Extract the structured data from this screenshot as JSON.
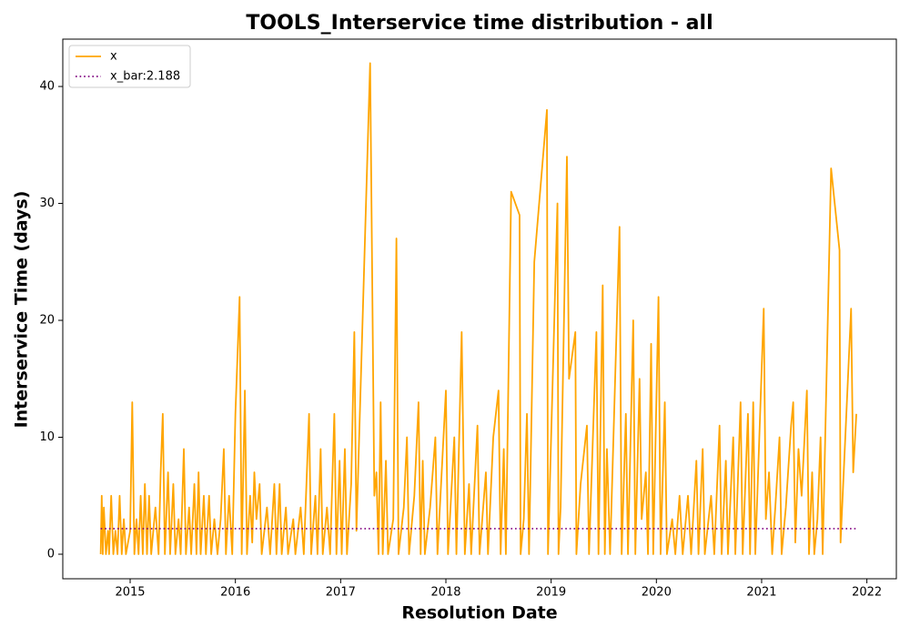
{
  "chart_data": {
    "type": "line",
    "title": "TOOLS_Interservice time distribution - all",
    "xlabel": "Resolution Date",
    "ylabel": "Interservice Time (days)",
    "xlim": [
      2014.36,
      2022.28
    ],
    "xticks": [
      2015,
      2016,
      2017,
      2018,
      2019,
      2020,
      2021,
      2022
    ],
    "ylim": [
      -2.1,
      44.05
    ],
    "yticks": [
      0,
      10,
      20,
      30,
      40
    ],
    "legend": "upper left",
    "series": [
      {
        "name": "x",
        "color": "#ffa500",
        "style": "solid",
        "x": [
          2014.72,
          2014.73,
          2014.74,
          2014.75,
          2014.77,
          2014.79,
          2014.8,
          2014.82,
          2014.84,
          2014.86,
          2014.88,
          2014.9,
          2014.92,
          2014.94,
          2014.96,
          2015.0,
          2015.02,
          2015.04,
          2015.06,
          2015.08,
          2015.1,
          2015.12,
          2015.14,
          2015.16,
          2015.18,
          2015.2,
          2015.24,
          2015.27,
          2015.29,
          2015.31,
          2015.33,
          2015.36,
          2015.38,
          2015.41,
          2015.43,
          2015.46,
          2015.48,
          2015.51,
          2015.53,
          2015.56,
          2015.58,
          2015.61,
          2015.63,
          2015.65,
          2015.67,
          2015.7,
          2015.72,
          2015.75,
          2015.77,
          2015.8,
          2015.83,
          2015.86,
          2015.89,
          2015.91,
          2015.94,
          2015.97,
          2016.0,
          2016.04,
          2016.06,
          2016.09,
          2016.11,
          2016.14,
          2016.16,
          2016.18,
          2016.2,
          2016.23,
          2016.25,
          2016.3,
          2016.33,
          2016.37,
          2016.39,
          2016.42,
          2016.44,
          2016.48,
          2016.5,
          2016.55,
          2016.57,
          2016.62,
          2016.65,
          2016.7,
          2016.72,
          2016.76,
          2016.78,
          2016.81,
          2016.83,
          2016.87,
          2016.9,
          2016.94,
          2016.96,
          2016.99,
          2017.01,
          2017.04,
          2017.06,
          2017.1,
          2017.13,
          2017.15,
          2017.28,
          2017.32,
          2017.34,
          2017.36,
          2017.38,
          2017.4,
          2017.43,
          2017.45,
          2017.5,
          2017.53,
          2017.55,
          2017.6,
          2017.63,
          2017.65,
          2017.7,
          2017.74,
          2017.76,
          2017.78,
          2017.8,
          2017.85,
          2017.9,
          2017.92,
          2018.0,
          2018.02,
          2018.08,
          2018.1,
          2018.15,
          2018.18,
          2018.22,
          2018.24,
          2018.3,
          2018.32,
          2018.38,
          2018.4,
          2018.45,
          2018.5,
          2018.52,
          2018.55,
          2018.57,
          2018.62,
          2018.7,
          2018.71,
          2018.74,
          2018.77,
          2018.79,
          2018.84,
          2018.96,
          2018.97,
          2019.06,
          2019.07,
          2019.09,
          2019.15,
          2019.17,
          2019.23,
          2019.24,
          2019.28,
          2019.34,
          2019.36,
          2019.43,
          2019.45,
          2019.49,
          2019.51,
          2019.53,
          2019.56,
          2019.65,
          2019.67,
          2019.71,
          2019.73,
          2019.78,
          2019.8,
          2019.84,
          2019.86,
          2019.9,
          2019.92,
          2019.95,
          2019.97,
          2020.02,
          2020.04,
          2020.08,
          2020.1,
          2020.15,
          2020.18,
          2020.22,
          2020.25,
          2020.3,
          2020.33,
          2020.38,
          2020.4,
          2020.44,
          2020.46,
          2020.52,
          2020.55,
          2020.6,
          2020.62,
          2020.66,
          2020.68,
          2020.73,
          2020.75,
          2020.8,
          2020.82,
          2020.87,
          2020.89,
          2020.92,
          2020.94,
          2021.02,
          2021.04,
          2021.07,
          2021.1,
          2021.13,
          2021.17,
          2021.19,
          2021.23,
          2021.28,
          2021.3,
          2021.32,
          2021.35,
          2021.38,
          2021.43,
          2021.45,
          2021.48,
          2021.5,
          2021.53,
          2021.56,
          2021.58,
          2021.66,
          2021.74,
          2021.75,
          2021.85,
          2021.87,
          2021.9
        ],
        "values": [
          0,
          5,
          0,
          4,
          0,
          2,
          0,
          5,
          0,
          2,
          0,
          5,
          0,
          3,
          0,
          2,
          13,
          0,
          3,
          0,
          5,
          0,
          6,
          0,
          5,
          0,
          4,
          0,
          7,
          12,
          0,
          7,
          0,
          6,
          0,
          3,
          0,
          9,
          0,
          4,
          0,
          6,
          0,
          7,
          0,
          5,
          0,
          5,
          0,
          3,
          0,
          3,
          9,
          0,
          5,
          0,
          12,
          22,
          0,
          14,
          0,
          5,
          1,
          7,
          3,
          6,
          0,
          4,
          0,
          6,
          0,
          6,
          0,
          4,
          0,
          3,
          0,
          4,
          0,
          12,
          0,
          5,
          0,
          9,
          0,
          4,
          0,
          12,
          0,
          8,
          0,
          9,
          0,
          6,
          19,
          2,
          42,
          5,
          7,
          0,
          13,
          0,
          8,
          0,
          3,
          27,
          0,
          4,
          10,
          0,
          5,
          13,
          0,
          8,
          0,
          4,
          10,
          0,
          14,
          0,
          10,
          0,
          19,
          0,
          6,
          0,
          11,
          0,
          7,
          0,
          10,
          14,
          0,
          9,
          0,
          31,
          29,
          0,
          3,
          12,
          0,
          25,
          38,
          0,
          30,
          0,
          4,
          34,
          15,
          19,
          0,
          6,
          11,
          0,
          19,
          0,
          23,
          0,
          9,
          0,
          28,
          0,
          12,
          0,
          20,
          0,
          15,
          3,
          7,
          0,
          18,
          0,
          22,
          0,
          13,
          0,
          3,
          0,
          5,
          0,
          5,
          0,
          8,
          0,
          9,
          0,
          5,
          0,
          11,
          0,
          8,
          0,
          10,
          0,
          13,
          0,
          12,
          0,
          13,
          0,
          21,
          3,
          7,
          0,
          4,
          10,
          0,
          4,
          11,
          13,
          1,
          9,
          5,
          14,
          0,
          7,
          0,
          3,
          10,
          0,
          33,
          26,
          1,
          21,
          7,
          12
        ]
      },
      {
        "name": "x_bar:2.188",
        "color": "#800080",
        "style": "dotted",
        "x": [
          2014.72,
          2021.9
        ],
        "values": [
          2.188,
          2.188
        ]
      }
    ]
  }
}
